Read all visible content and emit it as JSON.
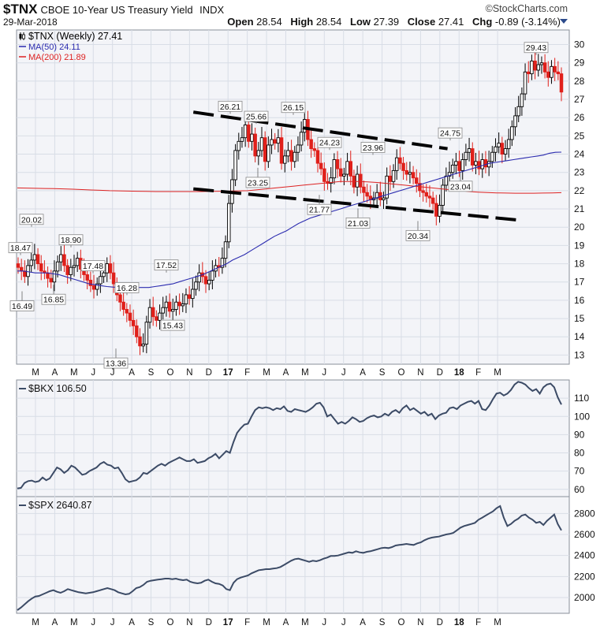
{
  "header": {
    "symbol": "$TNX",
    "description": "CBOE 10-Year US Treasury Yield",
    "exchange": "INDX",
    "brand": "©StockCharts.com",
    "date": "29-Mar-2018",
    "open_label": "Open",
    "open": "28.54",
    "high_label": "High",
    "high": "28.54",
    "low_label": "Low",
    "low": "27.39",
    "close_label": "Close",
    "close": "27.41",
    "chg_label": "Chg",
    "chg": "-0.89 (-3.14%)"
  },
  "colors": {
    "up": "#000000",
    "down": "#e0201b",
    "ma50": "#2b2baf",
    "ma200": "#dd2222",
    "panel_line": "#3c4b66",
    "grid": "#d8dde6",
    "panel_bg": "#f3f4f8"
  },
  "chart_data": [
    {
      "type": "candlestick",
      "title": "$TNX (Weekly) 27.41",
      "legend": [
        {
          "label": "$TNX (Weekly) 27.41",
          "color": "#000000"
        },
        {
          "label": "MA(50) 24.11",
          "color": "#2b2baf"
        },
        {
          "label": "MA(200) 21.89",
          "color": "#dd2222"
        }
      ],
      "legend_position": "top-left",
      "ylim": [
        12.5,
        30.8
      ],
      "y_ticks": [
        13,
        14,
        15,
        16,
        17,
        18,
        19,
        20,
        21,
        22,
        23,
        24,
        25,
        26,
        27,
        28,
        29,
        30
      ],
      "x_months": [
        "M",
        "A",
        "M",
        "J",
        "J",
        "A",
        "S",
        "O",
        "N",
        "D",
        "17",
        "F",
        "M",
        "A",
        "M",
        "J",
        "J",
        "A",
        "S",
        "O",
        "N",
        "D",
        "18",
        "F",
        "M"
      ],
      "bold_months": [
        "17",
        "18"
      ],
      "grid": true,
      "weekly_close": [
        17.8,
        17.6,
        17.3,
        17.9,
        18.2,
        18.5,
        18.0,
        17.6,
        17.5,
        17.2,
        17.0,
        17.6,
        18.1,
        18.5,
        17.9,
        17.4,
        17.8,
        17.9,
        18.3,
        17.7,
        17.4,
        17.1,
        16.8,
        16.6,
        16.9,
        17.3,
        17.5,
        18.0,
        17.5,
        16.9,
        16.3,
        15.9,
        15.5,
        15.3,
        14.9,
        14.6,
        14.0,
        13.5,
        13.6,
        14.8,
        15.6,
        15.1,
        14.9,
        15.3,
        15.6,
        15.9,
        15.4,
        15.5,
        15.9,
        15.7,
        15.8,
        16.3,
        16.1,
        16.6,
        17.0,
        17.5,
        17.3,
        16.9,
        17.1,
        17.6,
        17.9,
        17.8,
        18.3,
        19.2,
        21.3,
        22.6,
        24.2,
        24.7,
        24.9,
        25.6,
        24.7,
        25.1,
        23.9,
        24.2,
        24.9,
        23.6,
        24.5,
        24.8,
        24.6,
        24.9,
        23.5,
        23.9,
        24.2,
        23.6,
        24.1,
        24.5,
        25.2,
        25.9,
        24.8,
        24.3,
        24.2,
        23.5,
        23.2,
        22.5,
        22.4,
        22.7,
        23.7,
        23.2,
        22.8,
        22.9,
        23.6,
        22.8,
        22.2,
        22.9,
        22.2,
        21.9,
        21.7,
        21.5,
        21.6,
        21.9,
        21.5,
        21.6,
        22.8,
        22.5,
        23.1,
        23.8,
        23.5,
        23.1,
        22.9,
        23.0,
        22.7,
        22.4,
        22.0,
        21.9,
        21.7,
        21.6,
        21.3,
        20.6,
        21.2,
        22.3,
        22.8,
        23.0,
        23.4,
        23.6,
        23.1,
        23.7,
        24.1,
        24.3,
        23.4,
        23.6,
        23.2,
        23.7,
        23.3,
        23.6,
        24.1,
        24.4,
        24.6,
        24.0,
        24.3,
        24.8,
        25.5,
        26.1,
        26.6,
        27.3,
        28.5,
        28.4,
        29.1,
        28.6,
        28.9,
        29.0,
        28.5,
        28.2,
        28.8,
        28.5,
        28.4,
        27.4
      ],
      "ma50": [
        17.6,
        17.6,
        17.55,
        17.5,
        17.5,
        17.5,
        17.45,
        17.4,
        17.3,
        17.2,
        17.1,
        17.0,
        16.9,
        16.85,
        16.8,
        16.75,
        16.72,
        16.7,
        16.7,
        16.7,
        16.7,
        16.7,
        16.7,
        16.75,
        16.8,
        16.85,
        16.9,
        17.0,
        17.1,
        17.2,
        17.3,
        17.4,
        17.55,
        17.7,
        17.85,
        18.0,
        18.2,
        18.35,
        18.5,
        18.7,
        18.9,
        19.1,
        19.3,
        19.5,
        19.65,
        19.8,
        20.0,
        20.2,
        20.35,
        20.5,
        20.6,
        20.7,
        20.8,
        20.9,
        21.0,
        21.1,
        21.2,
        21.3,
        21.4,
        21.5,
        21.6,
        21.7,
        21.8,
        21.9,
        22.0,
        22.1,
        22.2,
        22.3,
        22.4,
        22.5,
        22.6,
        22.7,
        22.8,
        22.9,
        23.0,
        23.1,
        23.2,
        23.3,
        23.4,
        23.5,
        23.55,
        23.6,
        23.65,
        23.7,
        23.75,
        23.8,
        23.85,
        23.9,
        23.95,
        24.05,
        24.1,
        24.11
      ],
      "ma200": [
        22.15,
        22.14,
        22.13,
        22.12,
        22.11,
        22.1,
        22.08,
        22.06,
        22.04,
        22.02,
        22.0,
        21.99,
        21.98,
        21.97,
        21.96,
        21.95,
        21.95,
        21.95,
        21.95,
        21.95,
        21.95,
        21.96,
        21.97,
        21.98,
        21.99,
        22.0,
        22.05,
        22.1,
        22.15,
        22.2,
        22.25,
        22.3,
        22.35,
        22.4,
        22.45,
        22.5,
        22.5,
        22.5,
        22.48,
        22.45,
        22.4,
        22.35,
        22.3,
        22.25,
        22.2,
        22.15,
        22.1,
        22.05,
        22.0,
        21.95,
        21.92,
        21.9,
        21.88,
        21.87,
        21.86,
        21.86,
        21.86,
        21.87,
        21.88,
        21.89
      ],
      "annotations": [
        {
          "text": "18.47",
          "value": 18.47
        },
        {
          "text": "16.49",
          "value": 16.49
        },
        {
          "text": "20.02",
          "value": 20.02
        },
        {
          "text": "16.85",
          "value": 16.85
        },
        {
          "text": "18.90",
          "value": 18.9
        },
        {
          "text": "17.48",
          "value": 17.48
        },
        {
          "text": "13.36",
          "value": 13.36
        },
        {
          "text": "16.28",
          "value": 16.28
        },
        {
          "text": "17.52",
          "value": 17.52
        },
        {
          "text": "15.43",
          "value": 15.43
        },
        {
          "text": "26.21",
          "value": 26.21
        },
        {
          "text": "25.66",
          "value": 25.66
        },
        {
          "text": "23.25",
          "value": 23.25
        },
        {
          "text": "26.15",
          "value": 26.15
        },
        {
          "text": "21.77",
          "value": 21.77
        },
        {
          "text": "24.23",
          "value": 24.23
        },
        {
          "text": "23.96",
          "value": 23.96
        },
        {
          "text": "21.03",
          "value": 21.03
        },
        {
          "text": "20.34",
          "value": 20.34
        },
        {
          "text": "24.75",
          "value": 24.75
        },
        {
          "text": "23.04",
          "value": 23.04
        },
        {
          "text": "29.43",
          "value": 29.43
        }
      ],
      "channel_lines": [
        {
          "start": [
            2016.85,
            26.3
          ],
          "end": [
            2017.95,
            24.3
          ]
        },
        {
          "start": [
            2016.85,
            22.1
          ],
          "end": [
            2018.25,
            20.4
          ]
        }
      ]
    },
    {
      "type": "line",
      "title": "$BKX 106.50",
      "legend_position": "top-left",
      "ylim": [
        56,
        120
      ],
      "y_ticks": [
        60,
        70,
        80,
        90,
        100,
        110
      ],
      "grid": true,
      "values": [
        60.5,
        60.8,
        63.5,
        64.5,
        64.8,
        64.0,
        64.5,
        66.5,
        65.0,
        66.0,
        69.0,
        72.0,
        71.0,
        69.0,
        70.5,
        73.0,
        72.0,
        70.0,
        68.0,
        68.5,
        70.0,
        71.0,
        72.0,
        74.0,
        75.0,
        73.5,
        73.0,
        71.5,
        72.0,
        69.0,
        65.5,
        64.0,
        64.5,
        65.0,
        66.5,
        69.0,
        68.5,
        70.0,
        71.5,
        73.0,
        74.0,
        73.0,
        74.5,
        75.5,
        76.5,
        77.5,
        76.5,
        75.5,
        75.5,
        76.5,
        74.5,
        75.0,
        75.5,
        77.0,
        78.0,
        79.5,
        77.0,
        79.0,
        81.0,
        80.0,
        86.0,
        91.0,
        93.5,
        95.5,
        96.0,
        100.0,
        103.5,
        105.0,
        104.5,
        105.0,
        104.5,
        103.5,
        104.5,
        104.0,
        105.5,
        103.0,
        102.5,
        104.0,
        103.5,
        103.0,
        102.5,
        103.5,
        105.0,
        107.0,
        107.5,
        105.0,
        100.0,
        101.0,
        98.5,
        96.0,
        97.0,
        96.0,
        97.5,
        99.5,
        98.5,
        97.0,
        97.5,
        99.0,
        100.0,
        100.5,
        99.5,
        100.0,
        101.5,
        100.5,
        102.5,
        103.5,
        102.0,
        104.5,
        106.0,
        103.5,
        104.5,
        103.0,
        101.5,
        102.5,
        100.5,
        101.5,
        98.5,
        100.5,
        101.5,
        102.0,
        104.5,
        105.0,
        104.0,
        106.0,
        107.0,
        108.0,
        108.5,
        107.0,
        108.5,
        104.0,
        103.5,
        106.0,
        109.5,
        112.5,
        113.0,
        111.5,
        112.5,
        114.5,
        117.5,
        119.0,
        118.5,
        117.5,
        115.5,
        114.0,
        115.0,
        112.5,
        116.0,
        117.5,
        118.0,
        116.0,
        110.5,
        106.5
      ]
    },
    {
      "type": "line",
      "title": "$SPX 2640.87",
      "legend_position": "top-left",
      "ylim": [
        1850,
        2960
      ],
      "y_ticks": [
        2000,
        2200,
        2400,
        2600,
        2800
      ],
      "grid": true,
      "values": [
        1880,
        1905,
        1935,
        1965,
        1990,
        2010,
        2015,
        2030,
        2045,
        2060,
        2070,
        2055,
        2045,
        2060,
        2080,
        2070,
        2060,
        2050,
        2045,
        2040,
        2045,
        2050,
        2060,
        2070,
        2080,
        2090,
        2080,
        2070,
        2050,
        2040,
        2030,
        2035,
        2060,
        2090,
        2100,
        2120,
        2150,
        2160,
        2165,
        2170,
        2175,
        2180,
        2180,
        2175,
        2180,
        2170,
        2165,
        2170,
        2150,
        2140,
        2135,
        2140,
        2160,
        2170,
        2150,
        2135,
        2130,
        2115,
        2080,
        2070,
        2140,
        2175,
        2190,
        2200,
        2210,
        2230,
        2245,
        2260,
        2265,
        2270,
        2270,
        2275,
        2280,
        2290,
        2310,
        2330,
        2350,
        2365,
        2370,
        2360,
        2350,
        2340,
        2350,
        2345,
        2355,
        2370,
        2380,
        2395,
        2395,
        2400,
        2410,
        2420,
        2430,
        2425,
        2440,
        2430,
        2425,
        2435,
        2440,
        2450,
        2460,
        2470,
        2475,
        2470,
        2480,
        2495,
        2500,
        2505,
        2510,
        2505,
        2500,
        2515,
        2525,
        2545,
        2560,
        2570,
        2575,
        2580,
        2590,
        2600,
        2605,
        2615,
        2640,
        2665,
        2680,
        2690,
        2700,
        2710,
        2740,
        2760,
        2780,
        2800,
        2820,
        2850,
        2870,
        2760,
        2680,
        2700,
        2730,
        2750,
        2780,
        2790,
        2760,
        2740,
        2710,
        2720,
        2690,
        2730,
        2760,
        2790,
        2700,
        2640
      ]
    }
  ]
}
